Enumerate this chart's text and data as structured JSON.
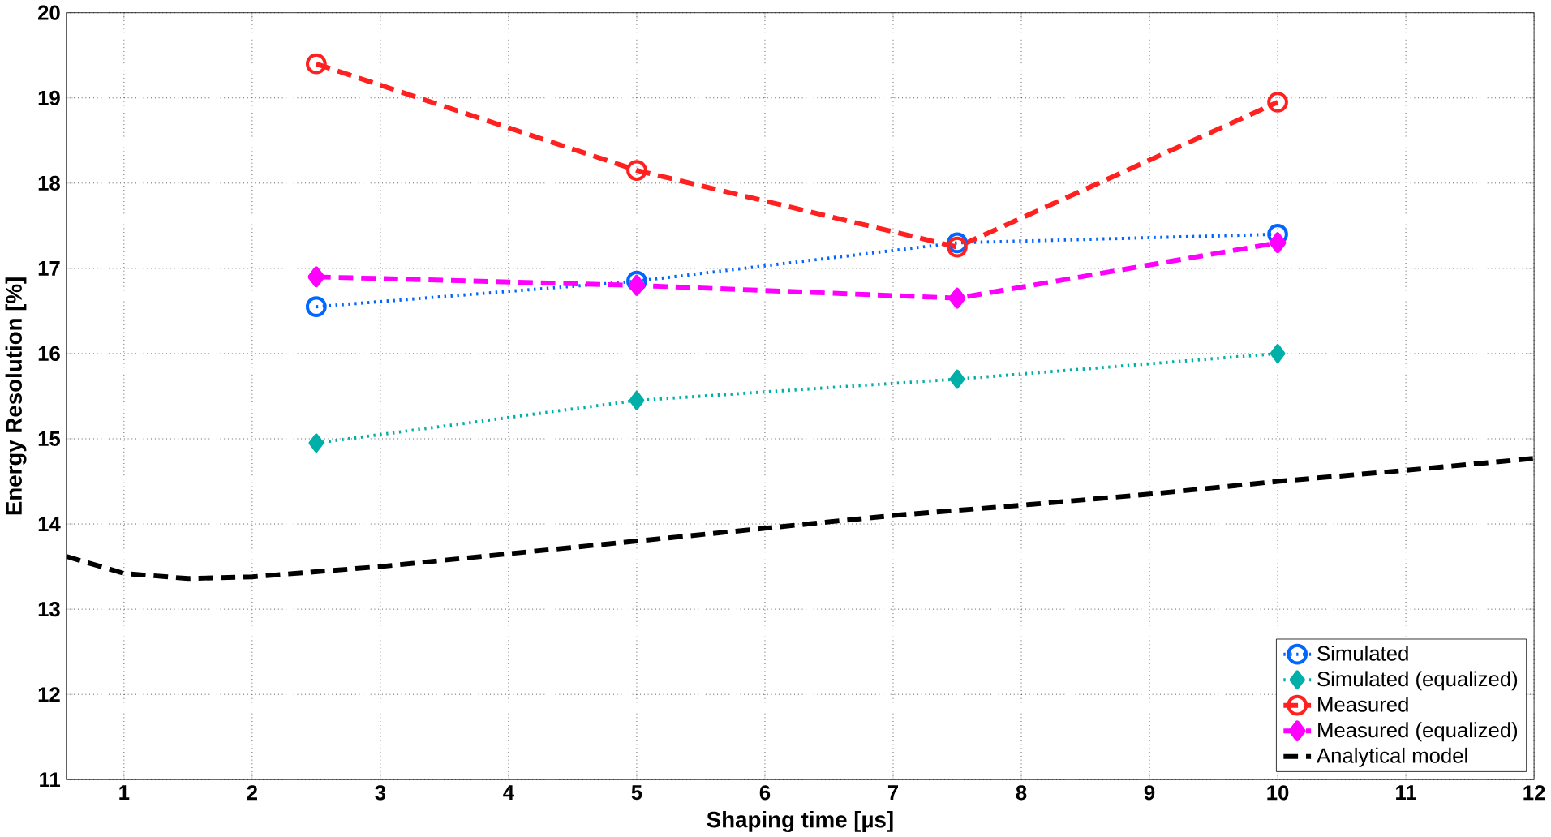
{
  "chart_data": {
    "type": "line",
    "xlabel": "Shaping time [µs]",
    "ylabel": "Energy Resolution [%]",
    "xlim": [
      0.55,
      12
    ],
    "ylim": [
      11,
      20
    ],
    "xticks": [
      1,
      2,
      3,
      4,
      5,
      6,
      7,
      8,
      9,
      10,
      11,
      12
    ],
    "yticks": [
      11,
      12,
      13,
      14,
      15,
      16,
      17,
      18,
      19,
      20
    ],
    "grid": true,
    "legend": "bottom right",
    "series": [
      {
        "name": "Simulated",
        "color": "#0066ff",
        "marker": "circle",
        "line_style": "dotted",
        "x": [
          2.5,
          5,
          7.5,
          10
        ],
        "values": [
          16.55,
          16.85,
          17.3,
          17.4
        ]
      },
      {
        "name": "Simulated (equalized)",
        "color": "#00b0a8",
        "marker": "diamond",
        "line_style": "dotted",
        "x": [
          2.5,
          5,
          7.5,
          10
        ],
        "values": [
          14.95,
          15.45,
          15.7,
          16.0
        ]
      },
      {
        "name": "Measured",
        "color": "#ff2020",
        "marker": "circle",
        "line_style": "dashed",
        "x": [
          2.5,
          5,
          7.5,
          10
        ],
        "values": [
          19.4,
          18.15,
          17.25,
          18.95
        ]
      },
      {
        "name": "Measured (equalized)",
        "color": "#ff00ff",
        "marker": "diamond",
        "line_style": "dashed",
        "x": [
          2.5,
          5,
          7.5,
          10
        ],
        "values": [
          16.9,
          16.8,
          16.65,
          17.3
        ]
      },
      {
        "name": "Analytical model",
        "color": "#000000",
        "marker": "none",
        "line_style": "dashed",
        "x": [
          0.55,
          1,
          1.5,
          2,
          3,
          4,
          5,
          6,
          7,
          8,
          9,
          10,
          11,
          12
        ],
        "values": [
          13.62,
          13.42,
          13.36,
          13.38,
          13.5,
          13.65,
          13.8,
          13.95,
          14.1,
          14.22,
          14.35,
          14.5,
          14.63,
          14.77
        ]
      }
    ]
  }
}
